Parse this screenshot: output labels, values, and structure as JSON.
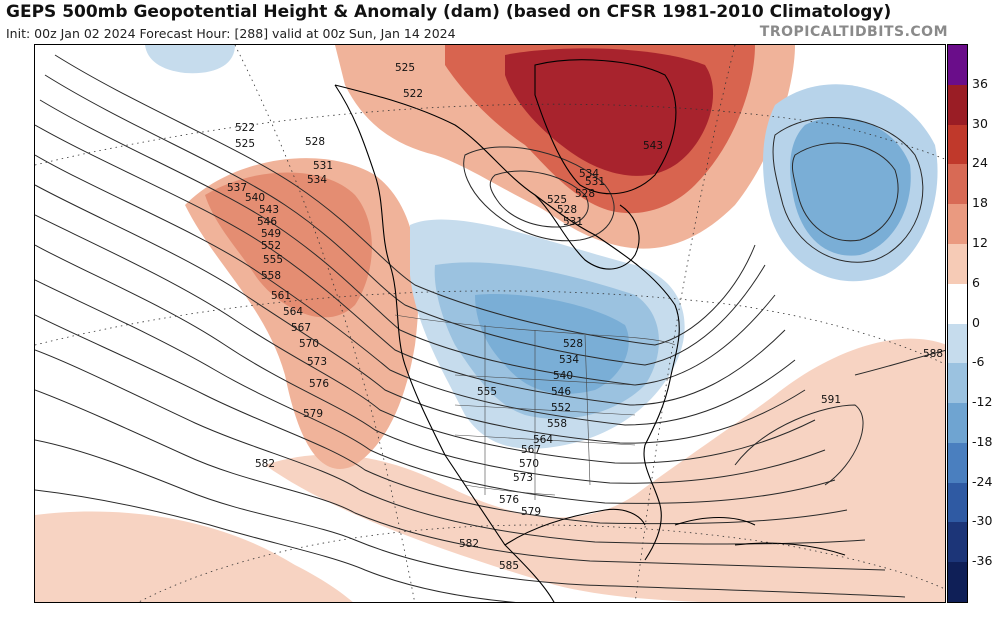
{
  "header": {
    "title": "GEPS 500mb Geopotential Height & Anomaly (dam) (based on CFSR 1981-2010 Climatology)",
    "subtitle": "Init: 00z Jan 02 2024   Forecast Hour: [288]   valid at 00z Sun, Jan 14 2024",
    "brand": "TROPICALTIDBITS.COM"
  },
  "colorbar": {
    "labels": [
      "36",
      "30",
      "24",
      "18",
      "12",
      "6",
      "0",
      "-6",
      "-12",
      "-18",
      "-24",
      "-30",
      "-36"
    ],
    "colors": [
      "#6a0d8a",
      "#9a1d25",
      "#c0392b",
      "#d86a55",
      "#ea9a80",
      "#f6cbb6",
      "#ffffff",
      "#c6dced",
      "#9bc2e0",
      "#6fa4d1",
      "#4a7fbf",
      "#2f5aa3",
      "#1c3578",
      "#0f1f57"
    ]
  },
  "map": {
    "contour_labels": [
      "522",
      "525",
      "528",
      "531",
      "534",
      "537",
      "540",
      "543",
      "546",
      "549",
      "552",
      "555",
      "558",
      "561",
      "564",
      "567",
      "570",
      "573",
      "576",
      "579",
      "582",
      "585",
      "588",
      "591"
    ],
    "colors": {
      "positive_strong": "#a3202a",
      "positive_mid": "#d86a55",
      "positive_light": "#f4c4ae",
      "negative_light": "#c6dced",
      "negative_mid": "#8fb8db",
      "negative_strong": "#5f93c6"
    }
  }
}
